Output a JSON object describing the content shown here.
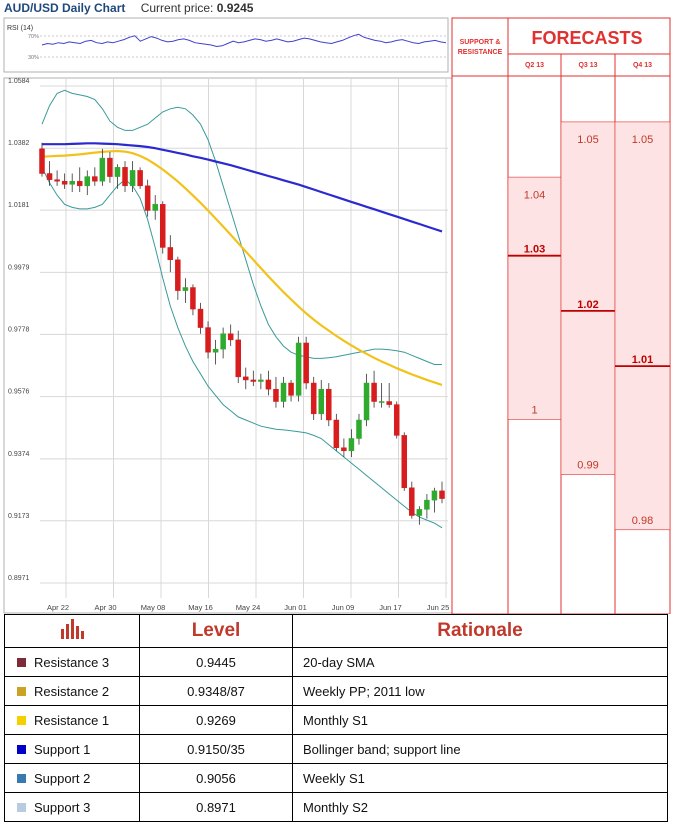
{
  "header": {
    "title": "AUD/USD Daily Chart",
    "current_price_label": "Current price:",
    "current_price": "0.9245"
  },
  "rsi": {
    "label": "RSI (14)",
    "upper": "70%",
    "lower": "30%",
    "values": [
      50,
      52,
      51,
      53,
      52,
      54,
      53,
      52,
      55,
      56,
      53,
      52,
      54,
      53,
      55,
      57,
      60,
      62,
      55,
      58,
      61,
      59,
      56,
      54,
      55,
      57,
      58,
      56,
      53,
      52,
      51,
      50,
      48,
      49,
      52,
      55,
      53,
      54,
      56,
      58,
      57,
      55,
      56,
      58,
      56,
      54,
      55,
      57,
      59,
      58,
      56,
      54,
      53,
      52,
      54,
      56,
      59,
      62,
      64,
      60,
      58,
      56,
      55,
      53,
      54,
      56,
      57,
      55,
      53,
      52,
      54,
      55,
      56,
      54,
      53
    ]
  },
  "forecasts": {
    "title": "FORECASTS",
    "sr_label_1": "SUPPORT &",
    "sr_label_2": "RESISTANCE",
    "quarters": [
      {
        "label": "Q2 13",
        "high": "1.04",
        "mid": "1.03",
        "low": "1"
      },
      {
        "label": "Q3 13",
        "high": "1.05",
        "mid": "1.02",
        "low": "0.99"
      },
      {
        "label": "Q4 13",
        "high": "1.05",
        "mid": "1.01",
        "low": "0.98"
      }
    ]
  },
  "levels": [
    {
      "name": "Resistance 3",
      "level": "0.9445",
      "rationale": "20-day SMA",
      "color": "#7b2c36",
      "value": 0.9445
    },
    {
      "name": "Resistance 2",
      "level": "0.9348/87",
      "rationale": "Weekly PP; 2011 low",
      "color": "#c9a227",
      "value": 0.9348
    },
    {
      "name": "Resistance 1",
      "level": "0.9269",
      "rationale": "Monthly S1",
      "color": "#f5d000",
      "value": 0.9269
    },
    {
      "name": "Support 1",
      "level": "0.9150/35",
      "rationale": "Bollinger band; support line",
      "color": "#0000c8",
      "value": 0.915
    },
    {
      "name": "Support 2",
      "level": "0.9056",
      "rationale": "Weekly S1",
      "color": "#3a78b0",
      "value": 0.9056
    },
    {
      "name": "Support 3",
      "level": "0.8971",
      "rationale": "Monthly S2",
      "color": "#b8cbe0",
      "value": 0.8971
    }
  ],
  "table_header": {
    "level": "Level",
    "rationale": "Rationale"
  },
  "chart_data": {
    "type": "candlestick",
    "title": "AUD/USD Daily Chart",
    "x_ticks": [
      "Apr 22",
      "Apr 30",
      "May 08",
      "May 16",
      "May 24",
      "Jun 01",
      "Jun 09",
      "Jun 17",
      "Jun 25"
    ],
    "y_ticks": [
      1.0584,
      1.0382,
      1.0181,
      0.9979,
      0.9778,
      0.9576,
      0.9374,
      0.9173,
      0.8971
    ],
    "ylim": [
      0.8971,
      1.0584
    ],
    "grid": true,
    "candles": [
      [
        1.038,
        1.04,
        1.029,
        1.03
      ],
      [
        1.03,
        1.034,
        1.026,
        1.028
      ],
      [
        1.028,
        1.031,
        1.026,
        1.0275
      ],
      [
        1.0275,
        1.03,
        1.025,
        1.0265
      ],
      [
        1.0265,
        1.03,
        1.024,
        1.0275
      ],
      [
        1.0275,
        1.032,
        1.024,
        1.026
      ],
      [
        1.026,
        1.031,
        1.023,
        1.029
      ],
      [
        1.029,
        1.032,
        1.026,
        1.0275
      ],
      [
        1.0275,
        1.038,
        1.026,
        1.035
      ],
      [
        1.035,
        1.037,
        1.027,
        1.029
      ],
      [
        1.029,
        1.033,
        1.025,
        1.032
      ],
      [
        1.032,
        1.034,
        1.024,
        1.026
      ],
      [
        1.026,
        1.034,
        1.024,
        1.031
      ],
      [
        1.031,
        1.032,
        1.025,
        1.026
      ],
      [
        1.026,
        1.028,
        1.016,
        1.018
      ],
      [
        1.018,
        1.023,
        1.015,
        1.02
      ],
      [
        1.02,
        1.021,
        1.004,
        1.006
      ],
      [
        1.006,
        1.01,
        0.998,
        1.002
      ],
      [
        1.002,
        1.003,
        0.989,
        0.992
      ],
      [
        0.992,
        0.996,
        0.988,
        0.993
      ],
      [
        0.993,
        0.994,
        0.984,
        0.986
      ],
      [
        0.986,
        0.988,
        0.978,
        0.98
      ],
      [
        0.98,
        0.982,
        0.97,
        0.972
      ],
      [
        0.972,
        0.976,
        0.968,
        0.973
      ],
      [
        0.973,
        0.98,
        0.97,
        0.978
      ],
      [
        0.978,
        0.981,
        0.974,
        0.976
      ],
      [
        0.976,
        0.979,
        0.962,
        0.964
      ],
      [
        0.964,
        0.967,
        0.96,
        0.963
      ],
      [
        0.963,
        0.966,
        0.961,
        0.9625
      ],
      [
        0.9625,
        0.965,
        0.96,
        0.963
      ],
      [
        0.963,
        0.966,
        0.958,
        0.96
      ],
      [
        0.96,
        0.964,
        0.954,
        0.956
      ],
      [
        0.956,
        0.964,
        0.954,
        0.962
      ],
      [
        0.962,
        0.963,
        0.956,
        0.958
      ],
      [
        0.958,
        0.977,
        0.956,
        0.975
      ],
      [
        0.975,
        0.977,
        0.96,
        0.962
      ],
      [
        0.962,
        0.964,
        0.95,
        0.952
      ],
      [
        0.952,
        0.963,
        0.95,
        0.96
      ],
      [
        0.96,
        0.962,
        0.948,
        0.95
      ],
      [
        0.95,
        0.952,
        0.94,
        0.941
      ],
      [
        0.941,
        0.944,
        0.938,
        0.94
      ],
      [
        0.94,
        0.947,
        0.938,
        0.944
      ],
      [
        0.944,
        0.952,
        0.942,
        0.95
      ],
      [
        0.95,
        0.965,
        0.948,
        0.962
      ],
      [
        0.962,
        0.966,
        0.954,
        0.956
      ],
      [
        0.956,
        0.962,
        0.954,
        0.956
      ],
      [
        0.956,
        0.962,
        0.954,
        0.955
      ],
      [
        0.955,
        0.956,
        0.944,
        0.945
      ],
      [
        0.945,
        0.946,
        0.927,
        0.928
      ],
      [
        0.928,
        0.93,
        0.918,
        0.919
      ],
      [
        0.919,
        0.922,
        0.916,
        0.921
      ],
      [
        0.921,
        0.926,
        0.918,
        0.924
      ],
      [
        0.924,
        0.928,
        0.92,
        0.927
      ],
      [
        0.927,
        0.93,
        0.923,
        0.9245
      ]
    ],
    "series": [
      {
        "name": "",
        "color": "#2a2ad0",
        "values": [
          1.0395,
          1.0395,
          1.0395,
          1.0395,
          1.0396,
          1.0397,
          1.0398,
          1.0398,
          1.0397,
          1.0396,
          1.0395,
          1.0393,
          1.0391,
          1.0389,
          1.0386,
          1.0382,
          1.0377,
          1.0372,
          1.0367,
          1.0362,
          1.0356,
          1.0351,
          1.0345,
          1.0339,
          1.0333,
          1.0327,
          1.032,
          1.0313,
          1.0306,
          1.0299,
          1.0292,
          1.0285,
          1.0278,
          1.0271,
          1.0264,
          1.0256,
          1.0248,
          1.024,
          1.0232,
          1.0224,
          1.0216,
          1.0208,
          1.02,
          1.0192,
          1.0184,
          1.0176,
          1.0168,
          1.016,
          1.0152,
          1.0144,
          1.0136,
          1.0128,
          1.012,
          1.0112
        ]
      },
      {
        "name": "",
        "color": "#f2c21b",
        "values": [
          1.0355,
          1.0356,
          1.0357,
          1.0358,
          1.036,
          1.0362,
          1.0365,
          1.0368,
          1.037,
          1.0372,
          1.0373,
          1.0371,
          1.0366,
          1.0357,
          1.0345,
          1.033,
          1.0313,
          1.0294,
          1.0274,
          1.0252,
          1.0229,
          1.0205,
          1.018,
          1.0154,
          1.0128,
          1.0101,
          1.0074,
          1.0047,
          1.002,
          0.9993,
          0.9966,
          0.994,
          0.9915,
          0.9891,
          0.9868,
          0.9846,
          0.9826,
          0.9807,
          0.979,
          0.9773,
          0.9757,
          0.9742,
          0.9728,
          0.9715,
          0.9702,
          0.969,
          0.9679,
          0.9668,
          0.9658,
          0.9648,
          0.9639,
          0.963,
          0.9622,
          0.9614
        ]
      }
    ],
    "bollinger_upper": [
      1.046,
      1.052,
      1.056,
      1.057,
      1.056,
      1.0555,
      1.055,
      1.054,
      1.051,
      1.047,
      1.045,
      1.044,
      1.044,
      1.045,
      1.046,
      1.048,
      1.05,
      1.051,
      1.0515,
      1.051,
      1.049,
      1.046,
      1.041,
      1.034,
      1.026,
      1.018,
      1.01,
      1.002,
      0.994,
      0.987,
      0.981,
      0.977,
      0.974,
      0.972,
      0.971,
      0.9705,
      0.97,
      0.97,
      0.9702,
      0.9705,
      0.971,
      0.9715,
      0.972,
      0.9725,
      0.973,
      0.973,
      0.9728,
      0.9725,
      0.972,
      0.971,
      0.97,
      0.969,
      0.968,
      0.968
    ],
    "bollinger_lower": [
      1.032,
      1.027,
      1.023,
      1.02,
      1.019,
      1.0185,
      1.0185,
      1.019,
      1.02,
      1.023,
      1.026,
      1.028,
      1.026,
      1.022,
      1.015,
      1.006,
      0.996,
      0.987,
      0.98,
      0.974,
      0.969,
      0.965,
      0.961,
      0.958,
      0.955,
      0.953,
      0.951,
      0.95,
      0.949,
      0.948,
      0.9475,
      0.947,
      0.9468,
      0.9465,
      0.9462,
      0.9458,
      0.945,
      0.944,
      0.942,
      0.94,
      0.938,
      0.936,
      0.934,
      0.932,
      0.93,
      0.928,
      0.926,
      0.924,
      0.922,
      0.92,
      0.9185,
      0.9175,
      0.9165,
      0.915
    ]
  }
}
